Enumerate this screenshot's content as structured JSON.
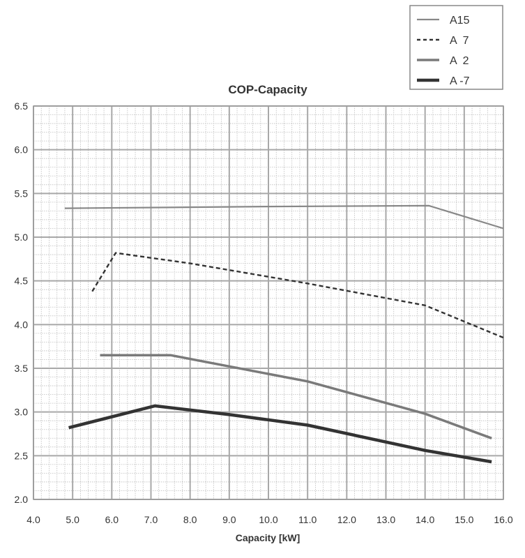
{
  "chart_data": {
    "type": "line",
    "title": "COP-Capacity",
    "xlabel": "Capacity [kW]",
    "ylabel": "",
    "xlim": [
      4.0,
      16.0
    ],
    "ylim": [
      2.0,
      6.5
    ],
    "x_ticks": [
      "4.0",
      "5.0",
      "6.0",
      "7.0",
      "8.0",
      "9.0",
      "10.0",
      "11.0",
      "12.0",
      "13.0",
      "14.0",
      "15.0",
      "16.0"
    ],
    "y_ticks": [
      "2.0",
      "2.5",
      "3.0",
      "3.5",
      "4.0",
      "4.5",
      "5.0",
      "5.5",
      "6.0",
      "6.5"
    ],
    "grid": true,
    "legend_position": "top-right",
    "series": [
      {
        "name": "A15",
        "style": "thin-solid",
        "color": "#888888",
        "x": [
          4.8,
          10.0,
          14.1,
          16.0
        ],
        "y": [
          5.33,
          5.35,
          5.36,
          5.1
        ]
      },
      {
        "name": "A  7",
        "style": "dashed",
        "color": "#333333",
        "x": [
          5.5,
          6.1,
          8.0,
          11.0,
          14.0,
          16.0
        ],
        "y": [
          4.38,
          4.82,
          4.7,
          4.47,
          4.22,
          3.85
        ]
      },
      {
        "name": "A  2",
        "style": "medium-solid",
        "color": "#7a7a7a",
        "x": [
          5.7,
          7.5,
          11.0,
          14.0,
          15.7
        ],
        "y": [
          3.65,
          3.65,
          3.35,
          2.98,
          2.7
        ]
      },
      {
        "name": "A -7",
        "style": "thick-solid",
        "color": "#333333",
        "x": [
          4.9,
          7.1,
          9.0,
          11.0,
          14.0,
          15.7
        ],
        "y": [
          2.82,
          3.07,
          2.97,
          2.85,
          2.56,
          2.43
        ]
      }
    ]
  }
}
